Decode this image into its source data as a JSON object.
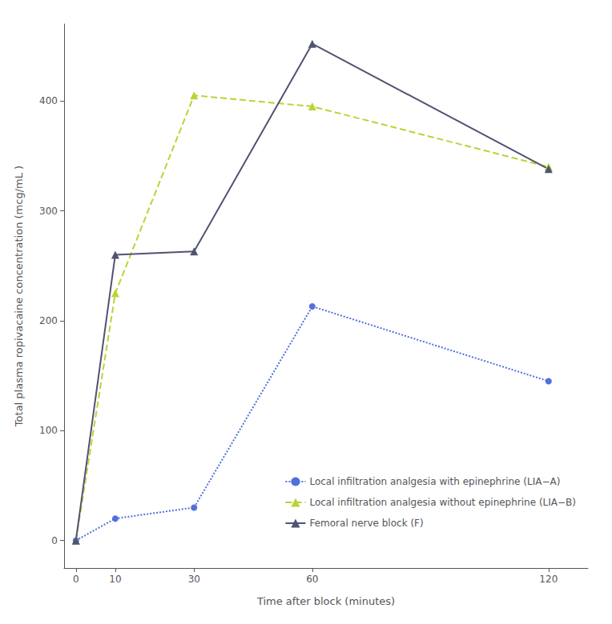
{
  "chart_data": {
    "type": "line",
    "xlabel": "Time after block (minutes)",
    "ylabel": "Total plasma ropivacaine concentration (mcg/mL )",
    "x": [
      0,
      10,
      30,
      60,
      120
    ],
    "xlim": [
      -3,
      130
    ],
    "xticks": [
      0,
      10,
      30,
      60,
      120
    ],
    "ylim": [
      -25,
      470
    ],
    "yticks": [
      0,
      100,
      200,
      300,
      400
    ],
    "series": [
      {
        "name": "Local infiltration analgesia with epinephrine (LIA−A)",
        "values": [
          0,
          20,
          30,
          213,
          145
        ],
        "line_style": "dotted",
        "marker": "circle"
      },
      {
        "name": "Local infiltration analgesia without epinephrine (LIA−B)",
        "values": [
          0,
          225,
          405,
          395,
          340
        ],
        "line_style": "dashed",
        "marker": "triangle"
      },
      {
        "name": "Femoral nerve block (F)",
        "values": [
          0,
          260,
          263,
          452,
          338
        ],
        "line_style": "solid",
        "marker": "triangle"
      }
    ],
    "legend": "lower right",
    "grid": false
  }
}
